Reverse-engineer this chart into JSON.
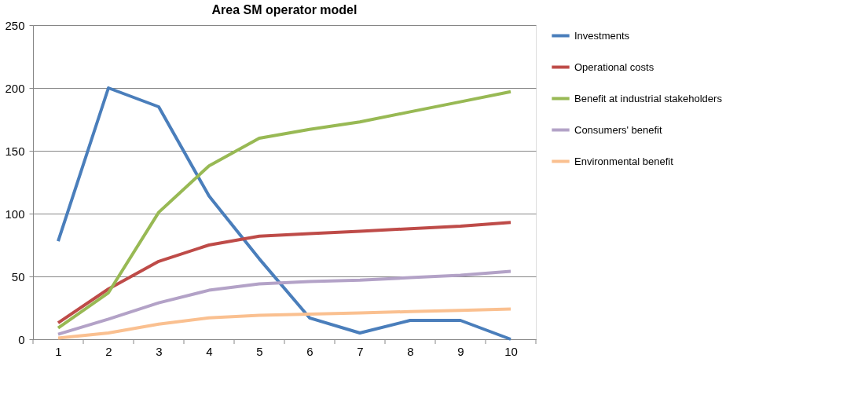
{
  "chart_data": {
    "type": "line",
    "title": "Area SM operator model",
    "categories": [
      "1",
      "2",
      "3",
      "4",
      "5",
      "6",
      "7",
      "8",
      "9",
      "10"
    ],
    "series": [
      {
        "name": "Investments",
        "color": "#4a7ebb",
        "values": [
          78,
          200,
          185,
          114,
          64,
          17,
          5,
          15,
          15,
          0
        ]
      },
      {
        "name": "Operational costs",
        "color": "#be4b48",
        "values": [
          13,
          40,
          62,
          75,
          82,
          84,
          86,
          88,
          90,
          93
        ]
      },
      {
        "name": "Benefit at industrial stakeholders",
        "color": "#98b954",
        "values": [
          9,
          37,
          101,
          138,
          160,
          167,
          173,
          181,
          189,
          197
        ]
      },
      {
        "name": "Consumers' benefit",
        "color": "#b3a2c7",
        "values": [
          4,
          16,
          29,
          39,
          44,
          46,
          47,
          49,
          51,
          54
        ]
      },
      {
        "name": "Environmental benefit",
        "color": "#fac090",
        "values": [
          1,
          5,
          12,
          17,
          19,
          20,
          21,
          22,
          23,
          24
        ]
      }
    ],
    "ylim": [
      0,
      250
    ],
    "yticks": [
      0,
      50,
      100,
      150,
      200,
      250
    ],
    "grid": "y",
    "legend": "right",
    "marker": "none",
    "line_style": "solid"
  }
}
